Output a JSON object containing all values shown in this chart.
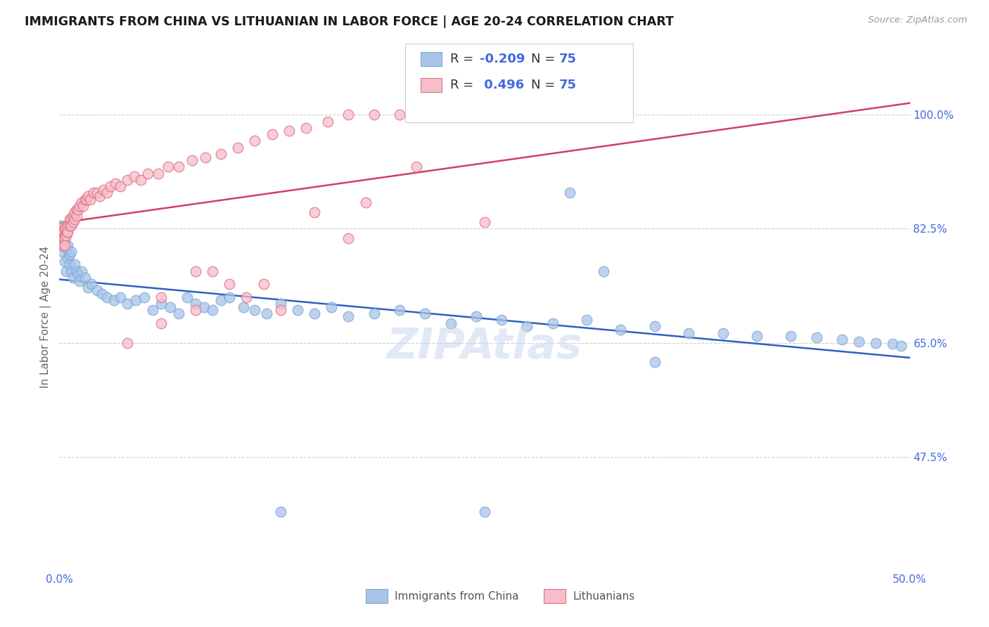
{
  "title": "IMMIGRANTS FROM CHINA VS LITHUANIAN IN LABOR FORCE | AGE 20-24 CORRELATION CHART",
  "source": "Source: ZipAtlas.com",
  "ylabel": "In Labor Force | Age 20-24",
  "xlim": [
    0.0,
    0.5
  ],
  "ylim": [
    0.3,
    1.08
  ],
  "xticks": [
    0.0,
    0.1,
    0.2,
    0.3,
    0.4,
    0.5
  ],
  "xticklabels": [
    "0.0%",
    "",
    "",
    "",
    "",
    "50.0%"
  ],
  "yticks_right": [
    1.0,
    0.825,
    0.65,
    0.475
  ],
  "yticklabels_right": [
    "100.0%",
    "82.5%",
    "65.0%",
    "47.5%"
  ],
  "china_color_fill": "#aac4e8",
  "china_edge": "#7aa8d8",
  "lith_color_fill": "#f5bec8",
  "lith_edge": "#e0708a",
  "trend_china_color": "#3060c0",
  "trend_lith_color": "#d04060",
  "R_china": -0.209,
  "N_china": 75,
  "R_lith": 0.496,
  "N_lith": 75,
  "legend_label_china": "Immigrants from China",
  "legend_label_lith": "Lithuanians",
  "china_x": [
    0.001,
    0.001,
    0.002,
    0.002,
    0.003,
    0.003,
    0.004,
    0.004,
    0.005,
    0.005,
    0.006,
    0.006,
    0.007,
    0.007,
    0.008,
    0.009,
    0.01,
    0.011,
    0.012,
    0.013,
    0.015,
    0.017,
    0.019,
    0.022,
    0.025,
    0.028,
    0.032,
    0.036,
    0.04,
    0.045,
    0.05,
    0.055,
    0.06,
    0.065,
    0.07,
    0.075,
    0.08,
    0.085,
    0.09,
    0.095,
    0.1,
    0.108,
    0.115,
    0.122,
    0.13,
    0.14,
    0.15,
    0.16,
    0.17,
    0.185,
    0.2,
    0.215,
    0.23,
    0.245,
    0.26,
    0.275,
    0.29,
    0.31,
    0.33,
    0.35,
    0.37,
    0.39,
    0.41,
    0.43,
    0.445,
    0.46,
    0.47,
    0.48,
    0.49,
    0.495,
    0.3,
    0.32,
    0.25,
    0.13,
    0.35
  ],
  "china_y": [
    0.82,
    0.83,
    0.81,
    0.79,
    0.8,
    0.775,
    0.795,
    0.76,
    0.78,
    0.8,
    0.785,
    0.77,
    0.79,
    0.76,
    0.75,
    0.77,
    0.76,
    0.755,
    0.745,
    0.76,
    0.75,
    0.735,
    0.74,
    0.73,
    0.725,
    0.72,
    0.715,
    0.72,
    0.71,
    0.715,
    0.72,
    0.7,
    0.71,
    0.705,
    0.695,
    0.72,
    0.71,
    0.705,
    0.7,
    0.715,
    0.72,
    0.705,
    0.7,
    0.695,
    0.71,
    0.7,
    0.695,
    0.705,
    0.69,
    0.695,
    0.7,
    0.695,
    0.68,
    0.69,
    0.685,
    0.675,
    0.68,
    0.685,
    0.67,
    0.675,
    0.665,
    0.665,
    0.66,
    0.66,
    0.658,
    0.655,
    0.652,
    0.65,
    0.648,
    0.645,
    0.88,
    0.76,
    0.39,
    0.39,
    0.62
  ],
  "lith_x": [
    0.001,
    0.001,
    0.002,
    0.002,
    0.002,
    0.003,
    0.003,
    0.003,
    0.003,
    0.004,
    0.004,
    0.004,
    0.005,
    0.005,
    0.005,
    0.006,
    0.006,
    0.007,
    0.007,
    0.008,
    0.008,
    0.009,
    0.009,
    0.01,
    0.01,
    0.011,
    0.012,
    0.013,
    0.014,
    0.015,
    0.016,
    0.017,
    0.018,
    0.02,
    0.022,
    0.024,
    0.026,
    0.028,
    0.03,
    0.033,
    0.036,
    0.04,
    0.044,
    0.048,
    0.052,
    0.058,
    0.064,
    0.07,
    0.078,
    0.086,
    0.095,
    0.105,
    0.115,
    0.125,
    0.135,
    0.145,
    0.158,
    0.17,
    0.185,
    0.2,
    0.04,
    0.06,
    0.08,
    0.11,
    0.21,
    0.08,
    0.1,
    0.13,
    0.17,
    0.06,
    0.09,
    0.12,
    0.25,
    0.15,
    0.18
  ],
  "lith_y": [
    0.825,
    0.815,
    0.82,
    0.81,
    0.8,
    0.815,
    0.81,
    0.825,
    0.8,
    0.82,
    0.825,
    0.815,
    0.82,
    0.83,
    0.82,
    0.84,
    0.83,
    0.84,
    0.83,
    0.845,
    0.835,
    0.84,
    0.85,
    0.855,
    0.845,
    0.855,
    0.86,
    0.865,
    0.86,
    0.87,
    0.87,
    0.875,
    0.87,
    0.88,
    0.88,
    0.875,
    0.885,
    0.88,
    0.89,
    0.895,
    0.89,
    0.9,
    0.905,
    0.9,
    0.91,
    0.91,
    0.92,
    0.92,
    0.93,
    0.935,
    0.94,
    0.95,
    0.96,
    0.97,
    0.975,
    0.98,
    0.99,
    1.0,
    1.0,
    1.0,
    0.65,
    0.68,
    0.7,
    0.72,
    0.92,
    0.76,
    0.74,
    0.7,
    0.81,
    0.72,
    0.76,
    0.74,
    0.835,
    0.85,
    0.865
  ]
}
